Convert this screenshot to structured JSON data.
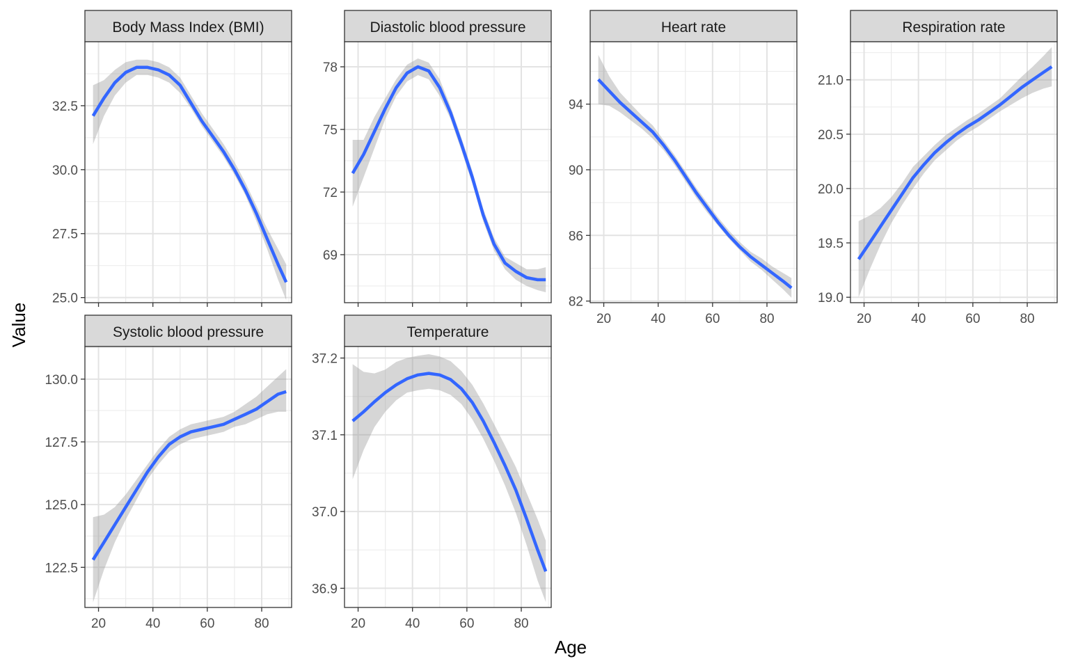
{
  "figure": {
    "xlabel": "Age",
    "ylabel": "Value"
  },
  "chart_data": [
    {
      "type": "line",
      "title": "Body Mass Index (BMI)",
      "xticks": [
        20,
        40,
        60,
        80
      ],
      "yticks": [
        "25.0",
        "27.5",
        "30.0",
        "32.5"
      ],
      "xlim": [
        15,
        91
      ],
      "ylim": [
        24.8,
        35.0
      ],
      "show_x_labels": false,
      "x": [
        18,
        22,
        26,
        30,
        34,
        38,
        42,
        46,
        50,
        54,
        58,
        62,
        66,
        70,
        74,
        78,
        82,
        86,
        89
      ],
      "y": [
        32.1,
        32.8,
        33.4,
        33.8,
        34.0,
        34.0,
        33.9,
        33.7,
        33.3,
        32.6,
        31.9,
        31.3,
        30.7,
        30.0,
        29.2,
        28.3,
        27.3,
        26.3,
        25.6
      ],
      "ci_lower": [
        31.0,
        32.1,
        32.9,
        33.4,
        33.7,
        33.7,
        33.6,
        33.4,
        33.0,
        32.4,
        31.7,
        31.1,
        30.5,
        29.8,
        29.0,
        28.0,
        26.9,
        25.7,
        24.9
      ],
      "ci_upper": [
        33.3,
        33.5,
        33.9,
        34.2,
        34.3,
        34.3,
        34.2,
        34.0,
        33.6,
        32.9,
        32.2,
        31.6,
        31.0,
        30.3,
        29.5,
        28.6,
        27.7,
        26.9,
        26.3
      ]
    },
    {
      "type": "line",
      "title": "Diastolic blood pressure",
      "xticks": [
        20,
        40,
        60,
        80
      ],
      "yticks": [
        "69",
        "72",
        "75",
        "78"
      ],
      "xlim": [
        15,
        91
      ],
      "ylim": [
        66.7,
        79.2
      ],
      "show_x_labels": false,
      "x": [
        18,
        22,
        26,
        30,
        34,
        38,
        42,
        46,
        50,
        54,
        58,
        62,
        66,
        70,
        74,
        78,
        82,
        86,
        89
      ],
      "y": [
        72.9,
        73.8,
        74.9,
        76.0,
        77.0,
        77.7,
        78.0,
        77.8,
        77.0,
        75.8,
        74.3,
        72.7,
        70.9,
        69.5,
        68.6,
        68.2,
        67.9,
        67.8,
        67.8
      ],
      "ci_lower": [
        71.3,
        72.7,
        74.1,
        75.5,
        76.6,
        77.3,
        77.6,
        77.4,
        76.6,
        75.5,
        74.0,
        72.4,
        70.6,
        69.2,
        68.3,
        67.8,
        67.5,
        67.3,
        67.2
      ],
      "ci_upper": [
        74.5,
        74.5,
        75.6,
        76.5,
        77.4,
        78.1,
        78.4,
        78.2,
        77.4,
        76.1,
        74.6,
        73.0,
        71.2,
        69.8,
        68.9,
        68.6,
        68.3,
        68.3,
        68.4
      ]
    },
    {
      "type": "line",
      "title": "Heart rate",
      "xticks": [
        20,
        40,
        60,
        80
      ],
      "yticks": [
        "82",
        "86",
        "90",
        "94"
      ],
      "xlim": [
        15,
        91
      ],
      "ylim": [
        81.9,
        97.8
      ],
      "show_x_labels": true,
      "x": [
        18,
        22,
        26,
        30,
        34,
        38,
        42,
        46,
        50,
        54,
        58,
        62,
        66,
        70,
        74,
        78,
        82,
        86,
        89
      ],
      "y": [
        95.5,
        94.8,
        94.1,
        93.5,
        92.9,
        92.3,
        91.5,
        90.6,
        89.6,
        88.6,
        87.7,
        86.8,
        86.0,
        85.3,
        84.7,
        84.2,
        83.7,
        83.2,
        82.8
      ],
      "ci_lower": [
        94.0,
        93.9,
        93.5,
        93.0,
        92.5,
        91.9,
        91.2,
        90.3,
        89.3,
        88.3,
        87.4,
        86.6,
        85.8,
        85.1,
        84.4,
        83.9,
        83.3,
        82.7,
        82.2
      ],
      "ci_upper": [
        97.0,
        95.7,
        94.7,
        94.0,
        93.3,
        92.7,
        91.8,
        90.9,
        89.9,
        88.9,
        88.0,
        87.1,
        86.3,
        85.6,
        85.0,
        84.6,
        84.1,
        83.7,
        83.4
      ]
    },
    {
      "type": "line",
      "title": "Respiration rate",
      "xticks": [
        20,
        40,
        60,
        80
      ],
      "yticks": [
        "19.0",
        "19.5",
        "20.0",
        "20.5",
        "21.0"
      ],
      "xlim": [
        15,
        91
      ],
      "ylim": [
        18.95,
        21.35
      ],
      "show_x_labels": true,
      "x": [
        18,
        22,
        26,
        30,
        34,
        38,
        42,
        46,
        50,
        54,
        58,
        62,
        66,
        70,
        74,
        78,
        82,
        86,
        89
      ],
      "y": [
        19.35,
        19.5,
        19.65,
        19.8,
        19.95,
        20.1,
        20.22,
        20.33,
        20.42,
        20.5,
        20.57,
        20.63,
        20.7,
        20.77,
        20.85,
        20.93,
        21.0,
        21.07,
        21.12
      ],
      "ci_lower": [
        19.0,
        19.25,
        19.48,
        19.68,
        19.85,
        20.0,
        20.14,
        20.26,
        20.35,
        20.44,
        20.51,
        20.57,
        20.64,
        20.71,
        20.77,
        20.83,
        20.88,
        20.92,
        20.94
      ],
      "ci_upper": [
        19.7,
        19.75,
        19.82,
        19.92,
        20.05,
        20.2,
        20.3,
        20.4,
        20.49,
        20.56,
        20.63,
        20.69,
        20.76,
        20.83,
        20.93,
        21.03,
        21.12,
        21.22,
        21.3
      ]
    },
    {
      "type": "line",
      "title": "Systolic blood pressure",
      "xticks": [
        20,
        40,
        60,
        80
      ],
      "yticks": [
        "122.5",
        "125.0",
        "127.5",
        "130.0"
      ],
      "xlim": [
        15,
        91
      ],
      "ylim": [
        120.9,
        131.3
      ],
      "show_x_labels": true,
      "x": [
        18,
        22,
        26,
        30,
        34,
        38,
        42,
        46,
        50,
        54,
        58,
        62,
        66,
        70,
        74,
        78,
        82,
        86,
        89
      ],
      "y": [
        122.8,
        123.5,
        124.2,
        124.9,
        125.6,
        126.3,
        126.9,
        127.4,
        127.7,
        127.9,
        128.0,
        128.1,
        128.2,
        128.4,
        128.6,
        128.8,
        129.1,
        129.4,
        129.5
      ],
      "ci_lower": [
        121.1,
        122.4,
        123.5,
        124.4,
        125.2,
        126.0,
        126.6,
        127.1,
        127.4,
        127.6,
        127.7,
        127.8,
        127.9,
        128.1,
        128.2,
        128.4,
        128.6,
        128.7,
        128.7
      ],
      "ci_upper": [
        124.5,
        124.6,
        124.9,
        125.4,
        126.0,
        126.6,
        127.2,
        127.7,
        128.0,
        128.2,
        128.3,
        128.4,
        128.5,
        128.7,
        129.0,
        129.3,
        129.7,
        130.1,
        130.4
      ]
    },
    {
      "type": "line",
      "title": "Temperature",
      "xticks": [
        20,
        40,
        60,
        80
      ],
      "yticks": [
        "36.9",
        "37.0",
        "37.1",
        "37.2"
      ],
      "xlim": [
        15,
        91
      ],
      "ylim": [
        36.875,
        37.215
      ],
      "show_x_labels": true,
      "x": [
        18,
        22,
        26,
        30,
        34,
        38,
        42,
        46,
        50,
        54,
        58,
        62,
        66,
        70,
        74,
        78,
        82,
        86,
        89
      ],
      "y": [
        37.118,
        37.13,
        37.143,
        37.155,
        37.165,
        37.173,
        37.178,
        37.18,
        37.178,
        37.172,
        37.16,
        37.142,
        37.118,
        37.09,
        37.06,
        37.028,
        36.99,
        36.95,
        36.922
      ],
      "ci_lower": [
        37.042,
        37.08,
        37.11,
        37.13,
        37.145,
        37.155,
        37.158,
        37.16,
        37.158,
        37.152,
        37.14,
        37.12,
        37.095,
        37.066,
        37.034,
        36.998,
        36.956,
        36.91,
        36.882
      ],
      "ci_upper": [
        37.192,
        37.182,
        37.18,
        37.185,
        37.195,
        37.2,
        37.203,
        37.205,
        37.202,
        37.196,
        37.183,
        37.165,
        37.141,
        37.114,
        37.086,
        37.058,
        37.024,
        36.99,
        36.962
      ]
    }
  ]
}
